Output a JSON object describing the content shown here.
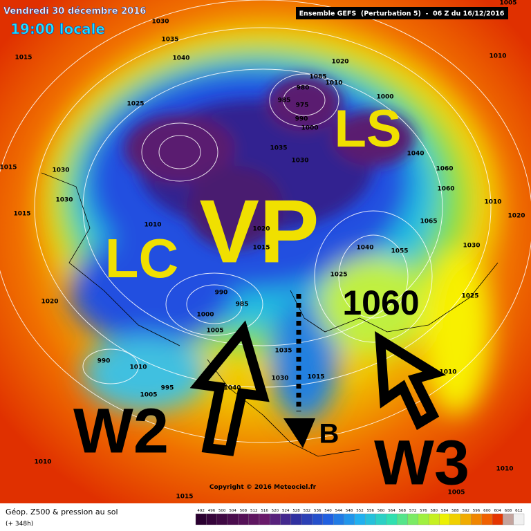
{
  "header": {
    "date": "Vendredi 30 décembre 2016",
    "time": "19:00 locale",
    "model": "Ensemble GEFS  (Perturbation 5)  -  06 Z du 16/12/2016"
  },
  "annotations": {
    "ls": "LS",
    "vp": "VP",
    "lc": "LC",
    "high": "1060",
    "w2": "W2",
    "w3": "W3",
    "b": "B"
  },
  "pressure_labels": [
    "1005",
    "1030",
    "1035",
    "1040",
    "1015",
    "1010",
    "1020",
    "1025",
    "1085",
    "1010",
    "980",
    "985",
    "975",
    "1000",
    "990",
    "1000",
    "1015",
    "1030",
    "1035",
    "1030",
    "1040",
    "1060",
    "1060",
    "1030",
    "1015",
    "1010",
    "1020",
    "1010",
    "1020",
    "1065",
    "1030",
    "1015",
    "1040",
    "1055",
    "1025",
    "1025",
    "1020",
    "985",
    "990",
    "1000",
    "1005",
    "1035",
    "1030",
    "1015",
    "1040",
    "990",
    "1010",
    "995",
    "1005",
    "1010",
    "1010",
    "1010",
    "1015",
    "1005"
  ],
  "copyright": "Copyright © 2016 Meteociel.fr",
  "footer": {
    "title": "Géop. Z500 & pression au sol",
    "lead": "(+ 348h)"
  },
  "scale": [
    492,
    496,
    500,
    504,
    508,
    512,
    516,
    520,
    524,
    528,
    532,
    536,
    540,
    544,
    548,
    552,
    556,
    560,
    564,
    568,
    572,
    576,
    580,
    584,
    588,
    592,
    596,
    600,
    604,
    608,
    612
  ]
}
